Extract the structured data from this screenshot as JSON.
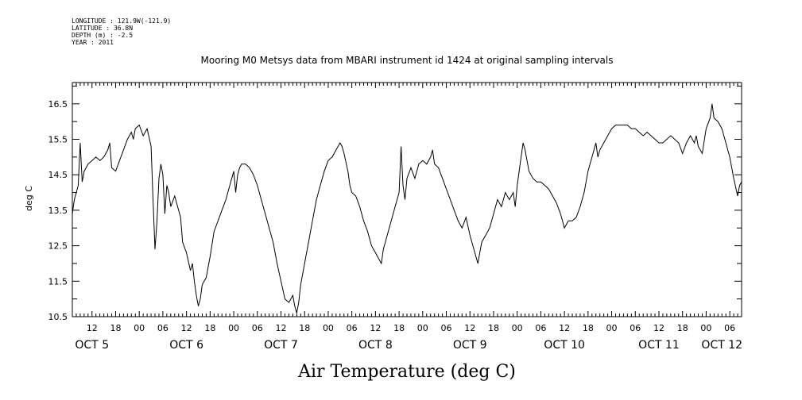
{
  "header": {
    "longitude": "LONGITUDE : 121.9W(-121.9)",
    "latitude": "LATITUDE : 36.8N",
    "depth": "DEPTH (m) : -2.5",
    "year": "YEAR : 2011"
  },
  "chart_data": {
    "type": "line",
    "title": "Mooring M0 Metsys data from MBARI instrument id 1424 at original sampling intervals",
    "ylabel": "deg C",
    "caption": "Air Temperature (deg C)",
    "ylim": [
      10.5,
      17.1
    ],
    "yticks": [
      10.5,
      11.5,
      12.5,
      13.5,
      14.5,
      15.5,
      16.5
    ],
    "ytick_labels": [
      "10.5",
      "11.5",
      "12.5",
      "13.5",
      "14.5",
      "15.5",
      "16.5"
    ],
    "xlim_hours": [
      7,
      177
    ],
    "hour_ticks": [
      {
        "hour": 12,
        "label": "12"
      },
      {
        "hour": 18,
        "label": "18"
      },
      {
        "hour": 24,
        "label": "00"
      },
      {
        "hour": 30,
        "label": "06"
      },
      {
        "hour": 36,
        "label": "12"
      },
      {
        "hour": 42,
        "label": "18"
      },
      {
        "hour": 48,
        "label": "00"
      },
      {
        "hour": 54,
        "label": "06"
      },
      {
        "hour": 60,
        "label": "12"
      },
      {
        "hour": 66,
        "label": "18"
      },
      {
        "hour": 72,
        "label": "00"
      },
      {
        "hour": 78,
        "label": "06"
      },
      {
        "hour": 84,
        "label": "12"
      },
      {
        "hour": 90,
        "label": "18"
      },
      {
        "hour": 96,
        "label": "00"
      },
      {
        "hour": 102,
        "label": "06"
      },
      {
        "hour": 108,
        "label": "12"
      },
      {
        "hour": 114,
        "label": "18"
      },
      {
        "hour": 120,
        "label": "00"
      },
      {
        "hour": 126,
        "label": "06"
      },
      {
        "hour": 132,
        "label": "12"
      },
      {
        "hour": 138,
        "label": "18"
      },
      {
        "hour": 144,
        "label": "00"
      },
      {
        "hour": 150,
        "label": "06"
      },
      {
        "hour": 156,
        "label": "12"
      },
      {
        "hour": 162,
        "label": "18"
      },
      {
        "hour": 168,
        "label": "00"
      },
      {
        "hour": 174,
        "label": "06"
      }
    ],
    "day_labels": [
      {
        "hour": 12,
        "label": "OCT  5"
      },
      {
        "hour": 36,
        "label": "OCT  6"
      },
      {
        "hour": 60,
        "label": "OCT  7"
      },
      {
        "hour": 84,
        "label": "OCT  8"
      },
      {
        "hour": 108,
        "label": "OCT  9"
      },
      {
        "hour": 132,
        "label": "OCT 10"
      },
      {
        "hour": 156,
        "label": "OCT 11"
      },
      {
        "hour": 172,
        "label": "OCT 12"
      }
    ],
    "series": [
      {
        "color": "#000000",
        "points": [
          [
            7.0,
            13.4
          ],
          [
            7.5,
            13.8
          ],
          [
            8.0,
            14.0
          ],
          [
            8.5,
            14.2
          ],
          [
            9.0,
            15.4
          ],
          [
            9.5,
            14.3
          ],
          [
            10.0,
            14.6
          ],
          [
            11.0,
            14.8
          ],
          [
            12.0,
            14.9
          ],
          [
            13.0,
            15.0
          ],
          [
            14.0,
            14.9
          ],
          [
            15.0,
            15.0
          ],
          [
            16.0,
            15.2
          ],
          [
            16.5,
            15.4
          ],
          [
            17.0,
            14.7
          ],
          [
            18.0,
            14.6
          ],
          [
            19.0,
            14.9
          ],
          [
            20.0,
            15.2
          ],
          [
            21.0,
            15.5
          ],
          [
            22.0,
            15.7
          ],
          [
            22.5,
            15.5
          ],
          [
            23.0,
            15.8
          ],
          [
            24.0,
            15.9
          ],
          [
            25.0,
            15.6
          ],
          [
            26.0,
            15.8
          ],
          [
            27.0,
            15.3
          ],
          [
            27.5,
            13.8
          ],
          [
            28.0,
            12.4
          ],
          [
            28.5,
            13.2
          ],
          [
            29.0,
            14.4
          ],
          [
            29.5,
            14.8
          ],
          [
            30.0,
            14.5
          ],
          [
            30.5,
            13.4
          ],
          [
            31.0,
            14.2
          ],
          [
            31.5,
            14.0
          ],
          [
            32.0,
            13.6
          ],
          [
            33.0,
            13.9
          ],
          [
            34.0,
            13.5
          ],
          [
            34.5,
            13.3
          ],
          [
            35.0,
            12.6
          ],
          [
            36.0,
            12.3
          ],
          [
            37.0,
            11.8
          ],
          [
            37.5,
            12.0
          ],
          [
            38.0,
            11.5
          ],
          [
            38.5,
            11.1
          ],
          [
            39.0,
            10.8
          ],
          [
            39.5,
            11.0
          ],
          [
            40.0,
            11.4
          ],
          [
            41.0,
            11.6
          ],
          [
            42.0,
            12.2
          ],
          [
            43.0,
            12.9
          ],
          [
            44.0,
            13.2
          ],
          [
            45.0,
            13.5
          ],
          [
            46.0,
            13.8
          ],
          [
            46.5,
            14.0
          ],
          [
            47.0,
            14.2
          ],
          [
            48.0,
            14.6
          ],
          [
            48.5,
            14.0
          ],
          [
            49.0,
            14.5
          ],
          [
            49.5,
            14.7
          ],
          [
            50.0,
            14.8
          ],
          [
            51.0,
            14.8
          ],
          [
            52.0,
            14.7
          ],
          [
            53.0,
            14.5
          ],
          [
            54.0,
            14.2
          ],
          [
            55.0,
            13.8
          ],
          [
            56.0,
            13.4
          ],
          [
            57.0,
            13.0
          ],
          [
            58.0,
            12.6
          ],
          [
            59.0,
            12.0
          ],
          [
            60.0,
            11.5
          ],
          [
            61.0,
            11.0
          ],
          [
            62.0,
            10.9
          ],
          [
            63.0,
            11.1
          ],
          [
            63.5,
            10.8
          ],
          [
            64.0,
            10.6
          ],
          [
            64.5,
            10.9
          ],
          [
            65.0,
            11.4
          ],
          [
            66.0,
            12.0
          ],
          [
            67.0,
            12.6
          ],
          [
            68.0,
            13.2
          ],
          [
            69.0,
            13.8
          ],
          [
            70.0,
            14.2
          ],
          [
            71.0,
            14.6
          ],
          [
            72.0,
            14.9
          ],
          [
            73.0,
            15.0
          ],
          [
            74.0,
            15.2
          ],
          [
            75.0,
            15.4
          ],
          [
            75.5,
            15.3
          ],
          [
            76.0,
            15.1
          ],
          [
            77.0,
            14.6
          ],
          [
            77.5,
            14.2
          ],
          [
            78.0,
            14.0
          ],
          [
            79.0,
            13.9
          ],
          [
            80.0,
            13.6
          ],
          [
            81.0,
            13.2
          ],
          [
            82.0,
            12.9
          ],
          [
            83.0,
            12.5
          ],
          [
            84.0,
            12.3
          ],
          [
            85.0,
            12.1
          ],
          [
            85.5,
            12.0
          ],
          [
            86.0,
            12.4
          ],
          [
            87.0,
            12.8
          ],
          [
            88.0,
            13.2
          ],
          [
            89.0,
            13.6
          ],
          [
            90.0,
            14.0
          ],
          [
            90.5,
            15.3
          ],
          [
            91.0,
            14.2
          ],
          [
            91.5,
            13.8
          ],
          [
            92.0,
            14.4
          ],
          [
            93.0,
            14.7
          ],
          [
            94.0,
            14.4
          ],
          [
            95.0,
            14.8
          ],
          [
            96.0,
            14.9
          ],
          [
            97.0,
            14.8
          ],
          [
            98.0,
            15.0
          ],
          [
            98.5,
            15.2
          ],
          [
            99.0,
            14.8
          ],
          [
            100.0,
            14.7
          ],
          [
            101.0,
            14.4
          ],
          [
            102.0,
            14.1
          ],
          [
            103.0,
            13.8
          ],
          [
            104.0,
            13.5
          ],
          [
            105.0,
            13.2
          ],
          [
            106.0,
            13.0
          ],
          [
            107.0,
            13.3
          ],
          [
            108.0,
            12.8
          ],
          [
            109.0,
            12.4
          ],
          [
            109.5,
            12.2
          ],
          [
            110.0,
            12.0
          ],
          [
            110.5,
            12.3
          ],
          [
            111.0,
            12.6
          ],
          [
            112.0,
            12.8
          ],
          [
            113.0,
            13.0
          ],
          [
            114.0,
            13.4
          ],
          [
            115.0,
            13.8
          ],
          [
            116.0,
            13.6
          ],
          [
            117.0,
            14.0
          ],
          [
            118.0,
            13.8
          ],
          [
            119.0,
            14.0
          ],
          [
            119.5,
            13.6
          ],
          [
            120.0,
            14.2
          ],
          [
            121.0,
            15.0
          ],
          [
            121.5,
            15.4
          ],
          [
            122.0,
            15.2
          ],
          [
            123.0,
            14.6
          ],
          [
            124.0,
            14.4
          ],
          [
            125.0,
            14.3
          ],
          [
            126.0,
            14.3
          ],
          [
            127.0,
            14.2
          ],
          [
            128.0,
            14.1
          ],
          [
            129.0,
            13.9
          ],
          [
            130.0,
            13.7
          ],
          [
            131.0,
            13.4
          ],
          [
            132.0,
            13.0
          ],
          [
            133.0,
            13.2
          ],
          [
            134.0,
            13.2
          ],
          [
            135.0,
            13.3
          ],
          [
            136.0,
            13.6
          ],
          [
            137.0,
            14.0
          ],
          [
            138.0,
            14.6
          ],
          [
            139.0,
            15.0
          ],
          [
            140.0,
            15.4
          ],
          [
            140.5,
            15.0
          ],
          [
            141.0,
            15.2
          ],
          [
            142.0,
            15.4
          ],
          [
            143.0,
            15.6
          ],
          [
            144.0,
            15.8
          ],
          [
            145.0,
            15.9
          ],
          [
            146.0,
            15.9
          ],
          [
            147.0,
            15.9
          ],
          [
            148.0,
            15.9
          ],
          [
            149.0,
            15.8
          ],
          [
            150.0,
            15.8
          ],
          [
            151.0,
            15.7
          ],
          [
            152.0,
            15.6
          ],
          [
            153.0,
            15.7
          ],
          [
            154.0,
            15.6
          ],
          [
            155.0,
            15.5
          ],
          [
            156.0,
            15.4
          ],
          [
            157.0,
            15.4
          ],
          [
            158.0,
            15.5
          ],
          [
            159.0,
            15.6
          ],
          [
            160.0,
            15.5
          ],
          [
            161.0,
            15.4
          ],
          [
            162.0,
            15.1
          ],
          [
            163.0,
            15.4
          ],
          [
            164.0,
            15.6
          ],
          [
            165.0,
            15.4
          ],
          [
            165.5,
            15.6
          ],
          [
            166.0,
            15.3
          ],
          [
            167.0,
            15.1
          ],
          [
            168.0,
            15.8
          ],
          [
            169.0,
            16.1
          ],
          [
            169.5,
            16.5
          ],
          [
            170.0,
            16.1
          ],
          [
            171.0,
            16.0
          ],
          [
            172.0,
            15.8
          ],
          [
            173.0,
            15.4
          ],
          [
            174.0,
            15.0
          ],
          [
            175.0,
            14.4
          ],
          [
            176.0,
            13.9
          ],
          [
            176.5,
            14.2
          ],
          [
            177.0,
            14.3
          ]
        ]
      }
    ]
  }
}
